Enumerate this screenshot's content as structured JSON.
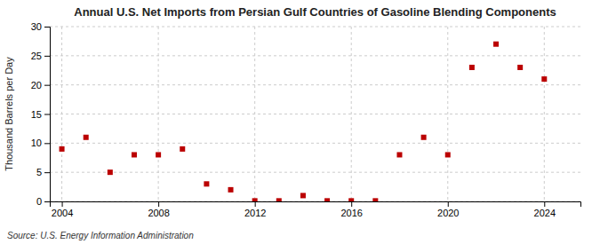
{
  "chart_data": {
    "type": "scatter",
    "title": "Annual U.S. Net Imports from Persian Gulf Countries of Gasoline Blending Components",
    "ylabel": "Thousand Barrels per Day",
    "source": "Source: U.S. Energy Information Administration",
    "x": [
      2004,
      2005,
      2006,
      2007,
      2008,
      2009,
      2010,
      2011,
      2012,
      2013,
      2014,
      2015,
      2016,
      2017,
      2018,
      2019,
      2020,
      2021,
      2022,
      2023,
      2024
    ],
    "values": [
      9,
      11,
      5,
      8,
      8,
      9,
      3,
      2,
      0.1,
      0.1,
      1,
      0.1,
      0.1,
      0.1,
      8,
      11,
      8,
      23,
      27,
      23,
      21
    ],
    "color": "#bb0000",
    "marker": "square",
    "xlim": [
      2003.5,
      2025.5
    ],
    "ylim": [
      0,
      30
    ],
    "xticks": [
      2004,
      2008,
      2012,
      2016,
      2020,
      2024
    ],
    "yticks": [
      0,
      5,
      10,
      15,
      20,
      25,
      30
    ],
    "grid": true
  }
}
